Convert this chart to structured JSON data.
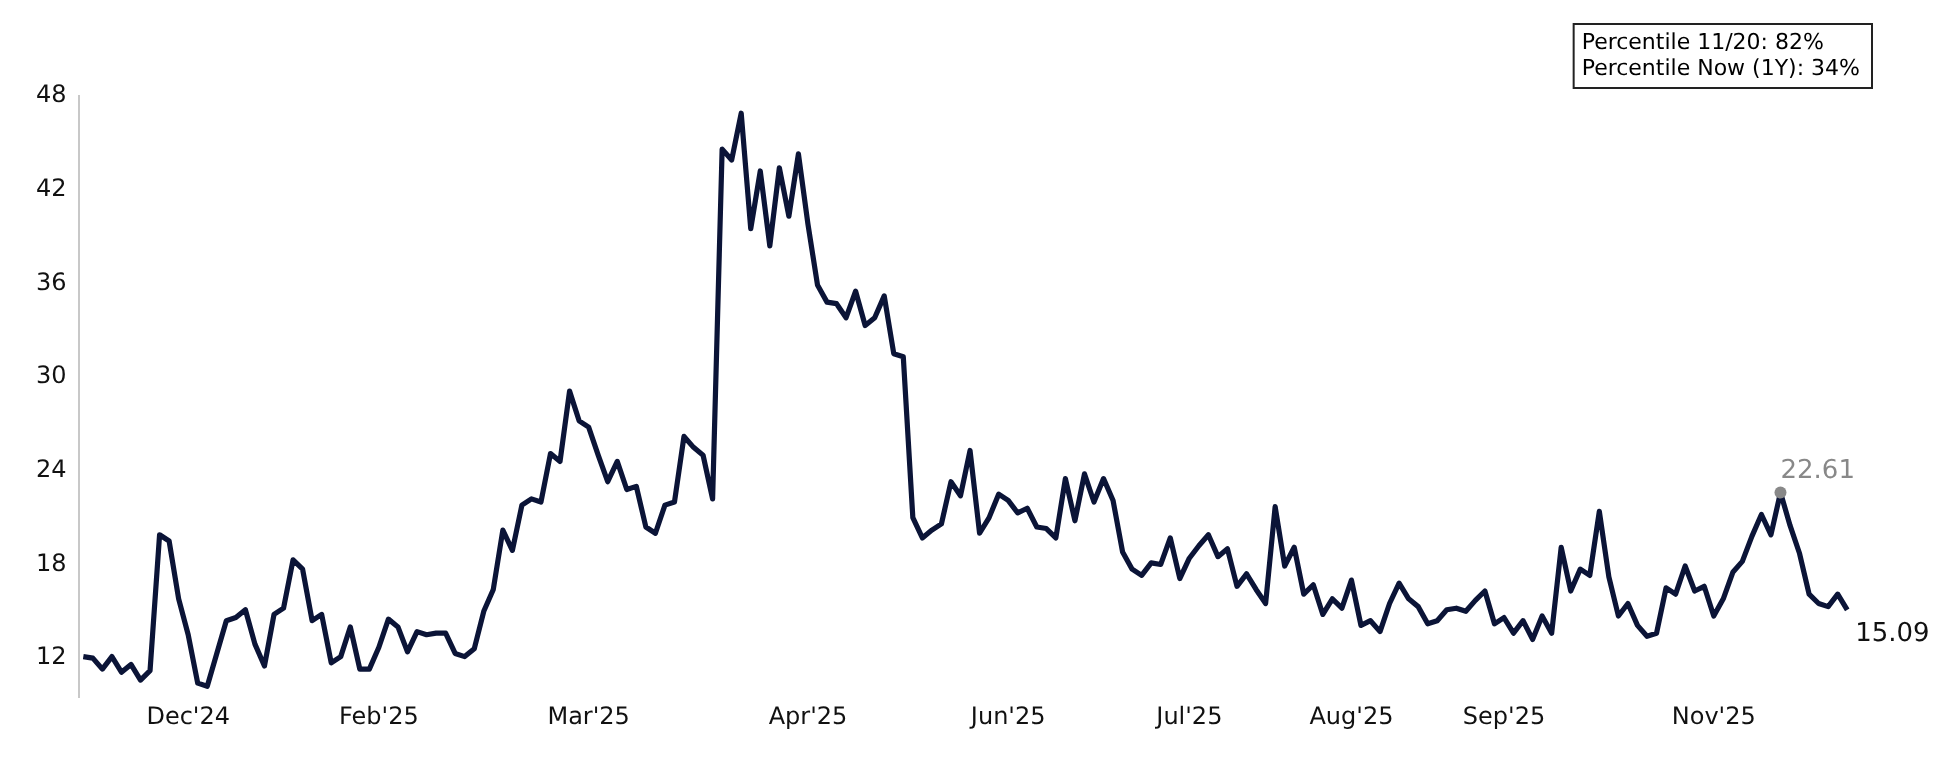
{
  "chart_data": {
    "type": "line",
    "ylim": [
      9.5,
      48
    ],
    "yticks": [
      12,
      18,
      24,
      30,
      36,
      42,
      48
    ],
    "categories": [
      null,
      null,
      null,
      null,
      null,
      null,
      null,
      null,
      null,
      null,
      null,
      "Dec'24",
      null,
      null,
      null,
      null,
      null,
      null,
      null,
      null,
      null,
      null,
      null,
      null,
      null,
      null,
      null,
      null,
      null,
      null,
      null,
      "Feb'25",
      null,
      null,
      null,
      null,
      null,
      null,
      null,
      null,
      null,
      null,
      null,
      null,
      null,
      null,
      null,
      null,
      null,
      null,
      null,
      null,
      null,
      "Mar'25",
      null,
      null,
      null,
      null,
      null,
      null,
      null,
      null,
      null,
      null,
      null,
      null,
      null,
      null,
      null,
      null,
      null,
      null,
      null,
      null,
      null,
      null,
      "Apr'25",
      null,
      null,
      null,
      null,
      null,
      null,
      null,
      null,
      null,
      null,
      null,
      null,
      null,
      null,
      null,
      null,
      null,
      null,
      null,
      null,
      "Jun'25",
      null,
      null,
      null,
      null,
      null,
      null,
      null,
      null,
      null,
      null,
      null,
      null,
      null,
      null,
      null,
      null,
      null,
      null,
      "Jul'25",
      null,
      null,
      null,
      null,
      null,
      null,
      null,
      null,
      null,
      null,
      null,
      null,
      null,
      null,
      null,
      null,
      "Aug'25",
      null,
      null,
      null,
      null,
      null,
      null,
      null,
      null,
      null,
      null,
      null,
      null,
      null,
      null,
      null,
      "Sep'25",
      null,
      null,
      null,
      null,
      null,
      null,
      null,
      null,
      null,
      null,
      null,
      null,
      null,
      null,
      null,
      null,
      null,
      null,
      null,
      null,
      null,
      "Nov'25",
      null,
      null,
      null,
      null,
      null,
      null,
      null,
      null,
      null,
      null,
      null,
      null,
      null,
      null
    ],
    "grid": false,
    "legend": false,
    "marker": "none",
    "line_style": "solid",
    "series": [
      {
        "color": "#0b1437",
        "values": [
          12.1,
          12,
          11.3,
          12.1,
          11.1,
          11.6,
          10.6,
          11.2,
          19.9,
          19.5,
          15.8,
          13.5,
          10.4,
          10.2,
          12.3,
          14.4,
          14.6,
          15.1,
          12.9,
          11.5,
          14.8,
          15.2,
          18.3,
          17.7,
          14.4,
          14.8,
          11.7,
          12.1,
          14,
          11.3,
          11.3,
          12.7,
          14.5,
          14,
          12.4,
          13.7,
          13.5,
          13.6,
          13.6,
          12.3,
          12.1,
          12.6,
          15,
          16.4,
          20.2,
          18.9,
          21.8,
          22.2,
          22,
          25.1,
          24.6,
          29.1,
          27.2,
          26.8,
          25,
          23.3,
          24.6,
          22.8,
          23,
          20.4,
          20,
          21.8,
          22,
          26.2,
          25.5,
          25,
          22.2,
          44.6,
          43.9,
          46.9,
          39.5,
          43.2,
          38.4,
          43.4,
          40.3,
          44.3,
          39.8,
          35.9,
          34.8,
          34.7,
          33.8,
          35.5,
          33.3,
          33.8,
          35.2,
          31.5,
          31.3,
          21,
          19.7,
          20.2,
          20.6,
          23.3,
          22.4,
          25.3,
          20,
          21,
          22.5,
          22.1,
          21.3,
          21.6,
          20.4,
          20.3,
          19.7,
          23.5,
          20.8,
          23.8,
          22,
          23.5,
          22.1,
          18.8,
          17.7,
          17.3,
          18.1,
          18,
          19.7,
          17.1,
          18.4,
          19.2,
          19.9,
          18.5,
          19,
          16.6,
          17.4,
          16.4,
          15.5,
          21.7,
          17.9,
          19.1,
          16.1,
          16.7,
          14.8,
          15.8,
          15.2,
          17,
          14.1,
          14.4,
          13.7,
          15.5,
          16.8,
          15.8,
          15.3,
          14.2,
          14.4,
          15.1,
          15.2,
          15,
          15.7,
          16.3,
          14.2,
          14.6,
          13.6,
          14.4,
          13.2,
          14.7,
          13.6,
          19.1,
          16.3,
          17.7,
          17.3,
          21.4,
          17.2,
          14.7,
          15.5,
          14.1,
          13.4,
          13.6,
          16.5,
          16.1,
          17.9,
          16.3,
          16.6,
          14.7,
          15.8,
          17.5,
          18.2,
          19.8,
          21.2,
          19.9,
          22.61,
          20.5,
          18.7,
          16.1,
          15.5,
          15.3,
          16.1,
          15.09
        ],
        "value_labels": [
          null,
          null,
          null,
          null,
          null,
          null,
          null,
          null,
          null,
          null,
          null,
          null,
          null,
          null,
          null,
          null,
          null,
          null,
          null,
          null,
          null,
          null,
          null,
          null,
          null,
          null,
          null,
          null,
          null,
          null,
          null,
          null,
          null,
          null,
          null,
          null,
          null,
          null,
          null,
          null,
          null,
          null,
          null,
          null,
          null,
          null,
          null,
          null,
          null,
          null,
          null,
          null,
          null,
          null,
          null,
          null,
          null,
          null,
          null,
          null,
          null,
          null,
          null,
          null,
          null,
          null,
          null,
          null,
          null,
          null,
          null,
          null,
          null,
          null,
          null,
          null,
          null,
          null,
          null,
          null,
          null,
          null,
          null,
          null,
          null,
          null,
          null,
          null,
          null,
          null,
          null,
          null,
          null,
          null,
          null,
          null,
          null,
          null,
          null,
          null,
          null,
          null,
          null,
          null,
          null,
          null,
          null,
          null,
          null,
          null,
          null,
          null,
          null,
          null,
          null,
          null,
          null,
          null,
          null,
          null,
          null,
          null,
          null,
          null,
          null,
          null,
          null,
          null,
          null,
          null,
          null,
          null,
          null,
          null,
          null,
          null,
          null,
          null,
          null,
          null,
          null,
          null,
          null,
          null,
          null,
          null,
          null,
          null,
          null,
          null,
          null,
          null,
          null,
          null,
          null,
          null,
          null,
          null,
          null,
          null,
          null,
          null,
          null,
          null,
          null,
          null,
          null,
          null,
          null,
          null,
          null,
          null,
          null,
          null,
          null,
          null,
          null,
          null,
          "22.61",
          null,
          null,
          null,
          null,
          null,
          null,
          "15.09"
        ]
      }
    ],
    "annotations": [
      "Percentile 11/20: 82%",
      "Percentile Now (1Y): 34%"
    ]
  }
}
